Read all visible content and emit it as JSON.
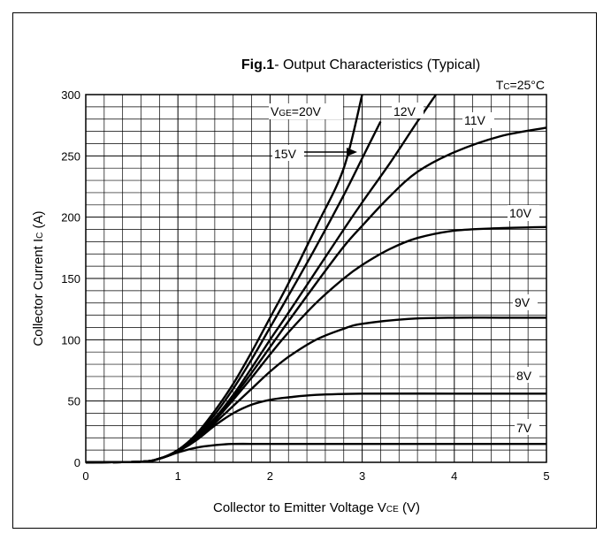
{
  "chart_data": {
    "type": "line",
    "title_bold": "Fig.1",
    "title_rest": "- Output Characteristics (Typical)",
    "condition": {
      "main": "T",
      "sub": "C",
      "rest": "=25°C"
    },
    "xlabel": {
      "main": "Collector to Emitter Voltage V",
      "sub": "CE",
      "rest": "  (V)"
    },
    "ylabel": {
      "main": "Collector Current I",
      "sub": "C",
      "rest": "  (A)"
    },
    "xlim": [
      0,
      5
    ],
    "ylim": [
      0,
      300
    ],
    "x_ticks": [
      "0",
      "1",
      "2",
      "3",
      "4",
      "5"
    ],
    "y_ticks": [
      "0",
      "50",
      "100",
      "150",
      "200",
      "250",
      "300"
    ],
    "grid": true,
    "series": [
      {
        "name": "7V",
        "x": [
          0,
          0.6,
          0.8,
          1.0,
          1.2,
          1.4,
          1.6,
          2,
          3,
          4,
          5
        ],
        "y": [
          0,
          0.5,
          3,
          8,
          12,
          14,
          15,
          15,
          15,
          15,
          15
        ]
      },
      {
        "name": "8V",
        "x": [
          0,
          0.6,
          0.8,
          1.0,
          1.2,
          1.4,
          1.6,
          1.8,
          2.0,
          2.2,
          2.5,
          3,
          4,
          5
        ],
        "y": [
          0,
          0.5,
          3,
          9,
          18,
          30,
          40,
          47,
          51,
          53,
          55,
          56,
          56,
          56
        ]
      },
      {
        "name": "9V",
        "x": [
          0,
          0.6,
          0.8,
          1.0,
          1.2,
          1.4,
          1.6,
          1.8,
          2.0,
          2.2,
          2.5,
          2.8,
          3,
          3.5,
          4,
          4.5,
          5
        ],
        "y": [
          0,
          0.5,
          3,
          9,
          19,
          32,
          46,
          60,
          74,
          86,
          100,
          109,
          113,
          117,
          118,
          118,
          118
        ]
      },
      {
        "name": "10V",
        "x": [
          0,
          0.6,
          0.8,
          1.0,
          1.2,
          1.4,
          1.6,
          1.8,
          2.0,
          2.2,
          2.5,
          2.8,
          3,
          3.3,
          3.6,
          4,
          4.5,
          5
        ],
        "y": [
          0,
          0.5,
          3,
          9,
          20,
          34,
          51,
          69,
          88,
          106,
          130,
          150,
          161,
          174,
          183,
          189,
          191,
          192
        ]
      },
      {
        "name": "11V",
        "x": [
          0,
          0.6,
          0.8,
          1.0,
          1.2,
          1.4,
          1.6,
          1.8,
          2.0,
          2.2,
          2.5,
          2.8,
          3,
          3.3,
          3.6,
          4,
          4.5,
          5
        ],
        "y": [
          0,
          0.5,
          3,
          9,
          20,
          35,
          53,
          73,
          94,
          115,
          146,
          176,
          193,
          217,
          237,
          253,
          266,
          273
        ]
      },
      {
        "name": "12V",
        "x": [
          0,
          0.6,
          0.8,
          1.0,
          1.2,
          1.4,
          1.6,
          1.8,
          2.0,
          2.2,
          2.5,
          2.8,
          3,
          3.3,
          3.6,
          3.8
        ],
        "y": [
          0,
          0.5,
          3,
          9,
          21,
          36,
          55,
          77,
          100,
          122,
          156,
          190,
          212,
          244,
          278,
          300
        ]
      },
      {
        "name": "15V",
        "x": [
          0,
          0.6,
          0.8,
          1.0,
          1.2,
          1.4,
          1.6,
          1.8,
          2.0,
          2.2,
          2.5,
          2.8,
          3,
          3.2
        ],
        "y": [
          0,
          0.5,
          3,
          10,
          22,
          39,
          60,
          84,
          110,
          136,
          176,
          218,
          248,
          278
        ]
      },
      {
        "name": "VGE=20V",
        "x": [
          0,
          0.6,
          0.8,
          1.0,
          1.2,
          1.4,
          1.6,
          1.8,
          2.0,
          2.2,
          2.5,
          2.8,
          3.0
        ],
        "y": [
          0,
          0.5,
          3,
          10,
          23,
          42,
          64,
          90,
          118,
          146,
          192,
          240,
          300
        ]
      }
    ],
    "labels": {
      "vge": {
        "main": "V",
        "sub": "GE",
        "rest": "=20V"
      },
      "v15": "15V",
      "v12": "12V",
      "v11": "11V",
      "v10": "10V",
      "v9": "9V",
      "v8": "8V",
      "v7": "7V"
    }
  }
}
